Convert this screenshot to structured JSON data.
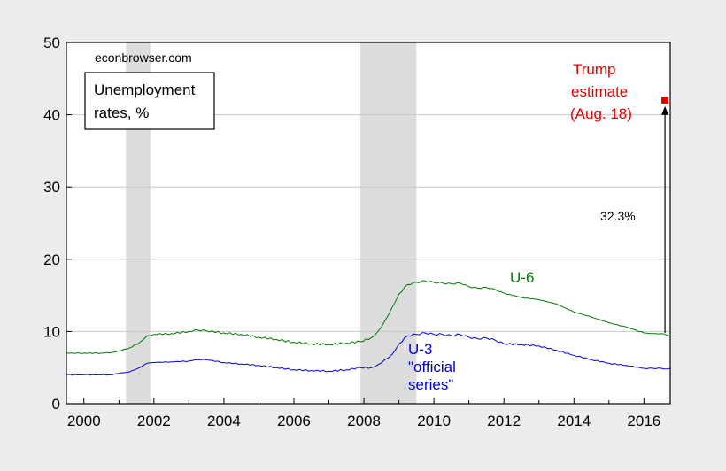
{
  "chart_data": {
    "type": "line",
    "watermark": "econbrowser.com",
    "legend_box": [
      "Unemployment",
      "rates, %"
    ],
    "xlim": [
      1999.5,
      2016.75
    ],
    "ylim": [
      0,
      50
    ],
    "x_ticks": [
      {
        "value": 2000,
        "label": "2000"
      },
      {
        "value": 2002,
        "label": "2002"
      },
      {
        "value": 2004,
        "label": "2004"
      },
      {
        "value": 2006,
        "label": "2006"
      },
      {
        "value": 2008,
        "label": "2008"
      },
      {
        "value": 2010,
        "label": "2010"
      },
      {
        "value": 2012,
        "label": "2012"
      },
      {
        "value": 2014,
        "label": "2014"
      },
      {
        "value": 2016,
        "label": "2016"
      }
    ],
    "y_ticks": [
      {
        "value": 0,
        "label": "0"
      },
      {
        "value": 10,
        "label": "10"
      },
      {
        "value": 20,
        "label": "20"
      },
      {
        "value": 30,
        "label": "30"
      },
      {
        "value": 40,
        "label": "40"
      },
      {
        "value": 50,
        "label": "50"
      }
    ],
    "grid": true,
    "recessions": [
      {
        "start": 2001.2,
        "end": 2001.9
      },
      {
        "start": 2007.9,
        "end": 2009.5
      }
    ],
    "series": [
      {
        "name": "U-6",
        "color": "#007a00",
        "x": [
          1999.5,
          2000.0,
          2000.5,
          2000.8,
          2001.0,
          2001.3,
          2001.6,
          2001.8,
          2002.0,
          2002.5,
          2003.0,
          2003.25,
          2003.5,
          2004.0,
          2004.5,
          2005.0,
          2005.5,
          2006.0,
          2006.5,
          2007.0,
          2007.5,
          2007.9,
          2008.2,
          2008.4,
          2008.6,
          2008.8,
          2009.0,
          2009.25,
          2009.5,
          2009.75,
          2010.0,
          2010.25,
          2010.5,
          2010.75,
          2011.0,
          2011.25,
          2011.5,
          2011.75,
          2012.0,
          2012.5,
          2013.0,
          2013.5,
          2014.0,
          2014.5,
          2015.0,
          2015.5,
          2016.0,
          2016.25,
          2016.5,
          2016.6,
          2016.75
        ],
        "y": [
          7.0,
          7.0,
          7.0,
          7.1,
          7.3,
          7.7,
          8.5,
          9.4,
          9.6,
          9.7,
          10.0,
          10.2,
          10.1,
          9.8,
          9.6,
          9.2,
          8.9,
          8.5,
          8.3,
          8.2,
          8.4,
          8.6,
          9.1,
          10.0,
          11.5,
          13.3,
          15.2,
          16.5,
          16.8,
          17.0,
          16.8,
          16.7,
          16.6,
          16.7,
          16.2,
          16.0,
          16.1,
          15.8,
          15.3,
          14.7,
          14.4,
          13.8,
          12.7,
          12.0,
          11.2,
          10.6,
          9.8,
          9.7,
          9.7,
          9.6,
          9.3
        ]
      },
      {
        "name": "U-3\n\"official\nseries\"",
        "color": "#0000e0",
        "x": [
          1999.5,
          2000.0,
          2000.5,
          2000.8,
          2001.0,
          2001.3,
          2001.6,
          2001.8,
          2002.0,
          2002.5,
          2003.0,
          2003.25,
          2003.5,
          2004.0,
          2004.5,
          2005.0,
          2005.5,
          2006.0,
          2006.5,
          2007.0,
          2007.5,
          2007.9,
          2008.2,
          2008.4,
          2008.6,
          2008.8,
          2009.0,
          2009.25,
          2009.5,
          2009.75,
          2010.0,
          2010.25,
          2010.5,
          2010.75,
          2011.0,
          2011.25,
          2011.5,
          2011.75,
          2012.0,
          2012.5,
          2013.0,
          2013.5,
          2014.0,
          2014.5,
          2015.0,
          2015.5,
          2016.0,
          2016.25,
          2016.5,
          2016.6,
          2016.75
        ],
        "y": [
          4.0,
          4.0,
          4.0,
          4.0,
          4.2,
          4.4,
          5.0,
          5.6,
          5.7,
          5.8,
          5.9,
          6.1,
          6.1,
          5.7,
          5.5,
          5.3,
          5.0,
          4.7,
          4.6,
          4.5,
          4.7,
          5.0,
          5.0,
          5.4,
          6.1,
          6.8,
          8.3,
          9.4,
          9.6,
          9.8,
          9.6,
          9.6,
          9.4,
          9.6,
          9.2,
          9.0,
          9.1,
          8.8,
          8.3,
          8.2,
          8.0,
          7.4,
          6.7,
          6.1,
          5.6,
          5.3,
          4.9,
          4.9,
          4.9,
          4.8,
          4.9
        ]
      }
    ],
    "trump_estimate": {
      "x": 2016.6,
      "y": 42.0,
      "color": "#e00000",
      "label": [
        "Trump",
        "estimate",
        "(Aug. 18)"
      ]
    },
    "arrow": {
      "x": 2016.6,
      "y_from": 9.8,
      "y_to": 41.2,
      "label": "32.3%"
    }
  }
}
